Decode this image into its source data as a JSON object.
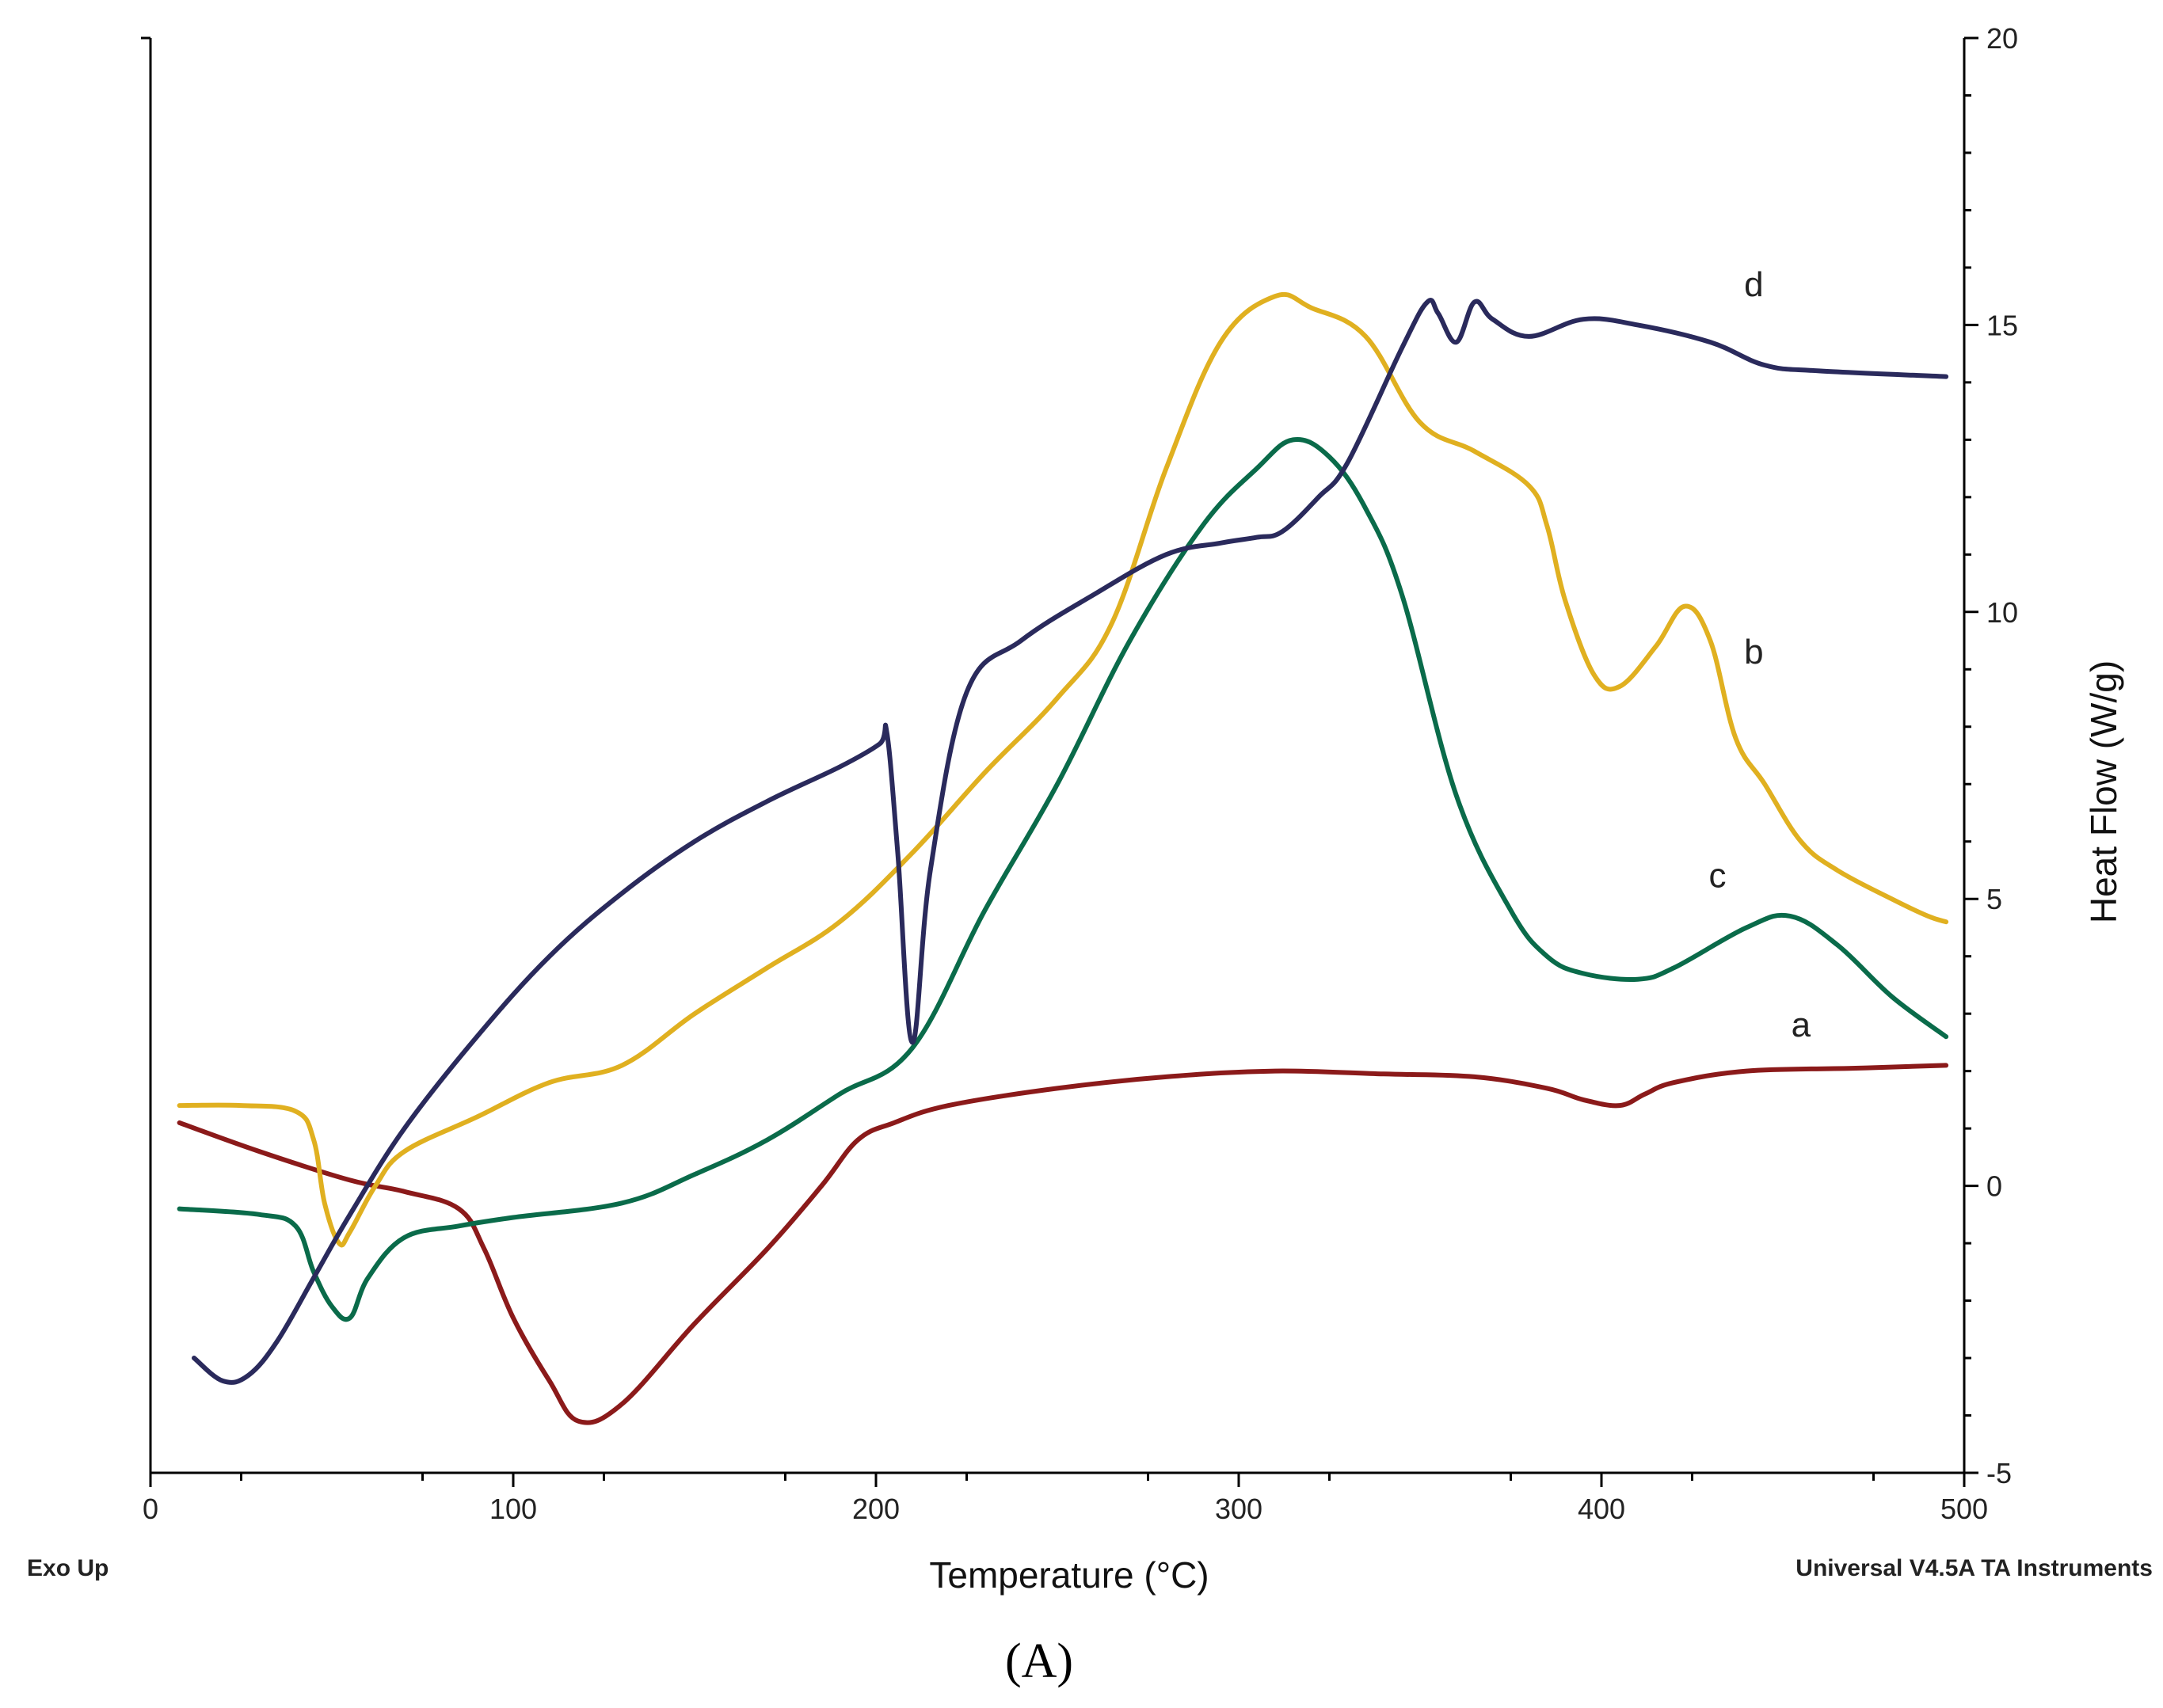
{
  "chart_data": {
    "type": "line",
    "title": "",
    "xlabel": "Temperature (°C)",
    "ylabel": "Heat Flow (W/g)",
    "xlim": [
      0,
      500
    ],
    "ylim": [
      -5,
      20
    ],
    "x_ticks": [
      "0",
      "100",
      "200",
      "300",
      "400",
      "500"
    ],
    "y_ticks": [
      "-5",
      "0",
      "5",
      "10",
      "15",
      "20"
    ],
    "grid": false,
    "corner_left": "Exo Up",
    "corner_right": "Universal V4.5A TA Instruments",
    "panel_label": "(A)",
    "series": [
      {
        "name": "a",
        "color": "#8B1A1A",
        "x": [
          8,
          30,
          55,
          70,
          85,
          92,
          100,
          110,
          118,
          130,
          150,
          170,
          185,
          195,
          205,
          220,
          250,
          280,
          310,
          340,
          365,
          385,
          395,
          405,
          412,
          420,
          440,
          470,
          495
        ],
        "y": [
          1.1,
          0.6,
          0.1,
          -0.1,
          -0.4,
          -1.1,
          -2.3,
          -3.4,
          -4.1,
          -3.8,
          -2.4,
          -1.1,
          0,
          0.8,
          1.1,
          1.4,
          1.7,
          1.9,
          2.0,
          1.95,
          1.9,
          1.7,
          1.5,
          1.4,
          1.6,
          1.8,
          2.0,
          2.05,
          2.1
        ]
      },
      {
        "name": "b",
        "color": "#E0B020",
        "x": [
          8,
          25,
          40,
          45,
          48,
          52,
          55,
          62,
          70,
          90,
          110,
          130,
          150,
          170,
          190,
          210,
          230,
          250,
          265,
          280,
          295,
          310,
          320,
          335,
          350,
          365,
          380,
          385,
          390,
          398,
          405,
          415,
          423,
          430,
          437,
          445,
          455,
          465,
          480,
          490,
          495
        ],
        "y": [
          1.4,
          1.4,
          1.3,
          0.8,
          -0.3,
          -1.0,
          -0.8,
          0,
          0.6,
          1.2,
          1.8,
          2.1,
          3.0,
          3.8,
          4.6,
          5.8,
          7.2,
          8.5,
          9.8,
          12.5,
          14.7,
          15.5,
          15.3,
          14.8,
          13.3,
          12.8,
          12.2,
          11.5,
          10.2,
          8.9,
          8.7,
          9.4,
          10.1,
          9.5,
          7.8,
          7.0,
          6.0,
          5.5,
          5.0,
          4.7,
          4.6
        ]
      },
      {
        "name": "c",
        "color": "#0A6B4A",
        "x": [
          8,
          30,
          40,
          45,
          50,
          55,
          60,
          70,
          85,
          100,
          130,
          150,
          170,
          190,
          210,
          230,
          250,
          270,
          290,
          305,
          315,
          325,
          335,
          345,
          360,
          375,
          385,
          395,
          410,
          420,
          440,
          452,
          465,
          480,
          495
        ],
        "y": [
          -0.4,
          -0.5,
          -0.7,
          -1.5,
          -2.1,
          -2.3,
          -1.6,
          -0.9,
          -0.7,
          -0.55,
          -0.3,
          0.2,
          0.8,
          1.6,
          2.4,
          4.8,
          7.0,
          9.5,
          11.5,
          12.5,
          13.0,
          12.7,
          11.8,
          10.3,
          6.8,
          4.8,
          4.0,
          3.7,
          3.6,
          3.8,
          4.5,
          4.7,
          4.2,
          3.3,
          2.6
        ]
      },
      {
        "name": "d",
        "color": "#2A2A5C",
        "x": [
          12,
          20,
          27,
          35,
          45,
          55,
          70,
          90,
          110,
          130,
          150,
          170,
          190,
          201,
          203,
          206,
          210,
          215,
          225,
          240,
          260,
          280,
          295,
          305,
          312,
          322,
          330,
          345,
          352,
          355,
          360,
          365,
          370,
          380,
          395,
          410,
          430,
          445,
          460,
          495
        ],
        "y": [
          -3.0,
          -3.4,
          -3.3,
          -2.7,
          -1.6,
          -0.5,
          1.0,
          2.6,
          4.0,
          5.1,
          6.0,
          6.7,
          7.3,
          7.7,
          7.9,
          5.8,
          2.5,
          5.5,
          8.6,
          9.5,
          10.3,
          11.0,
          11.2,
          11.3,
          11.4,
          12.0,
          12.6,
          14.6,
          15.4,
          15.2,
          14.7,
          15.4,
          15.1,
          14.8,
          15.1,
          15.0,
          14.7,
          14.3,
          14.2,
          14.1
        ]
      }
    ],
    "curve_labels": [
      {
        "text": "a",
        "x": 455,
        "y": 2.6
      },
      {
        "text": "b",
        "x": 442,
        "y": 9.1
      },
      {
        "text": "c",
        "x": 432,
        "y": 5.2
      },
      {
        "text": "d",
        "x": 442,
        "y": 15.5
      }
    ]
  }
}
